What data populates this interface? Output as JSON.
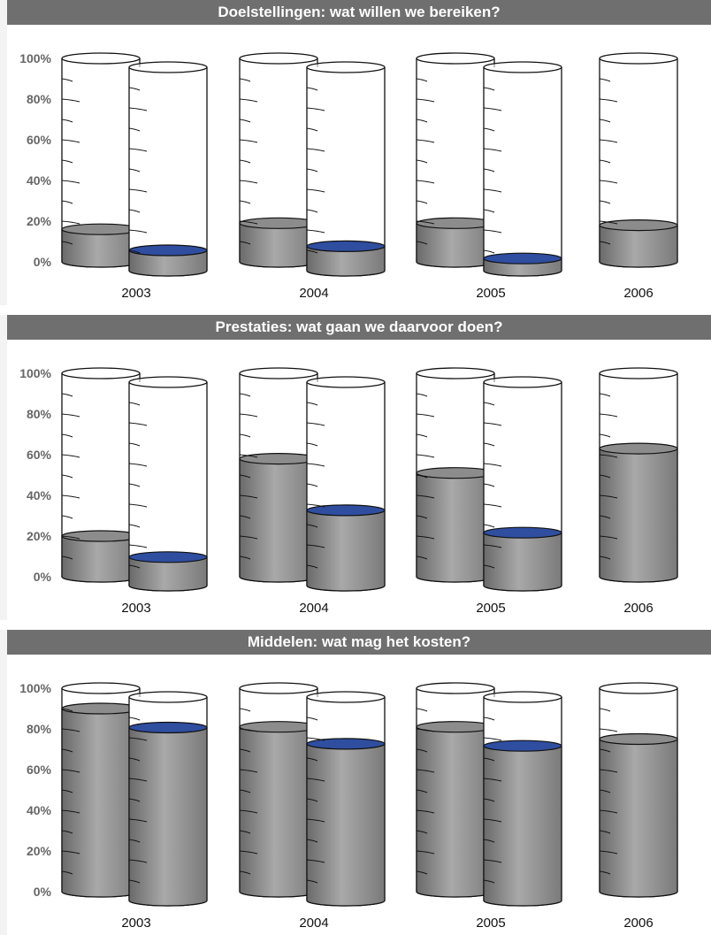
{
  "chart_data": [
    {
      "type": "bar",
      "title": "Doelstellingen: wat willen we bereiken?",
      "categories": [
        "2003",
        "2004",
        "2005",
        "2006"
      ],
      "ylim": [
        0,
        100
      ],
      "y_ticks": [
        "0%",
        "20%",
        "40%",
        "60%",
        "80%",
        "100%"
      ],
      "series": [
        {
          "values": [
            16,
            19,
            19,
            18
          ],
          "color": "#8c8c8c"
        },
        {
          "values": [
            10,
            12,
            6,
            null
          ],
          "color": "#2f4ea0"
        }
      ]
    },
    {
      "type": "bar",
      "title": "Prestaties: wat gaan we daarvoor doen?",
      "categories": [
        "2003",
        "2004",
        "2005",
        "2006"
      ],
      "ylim": [
        0,
        100
      ],
      "y_ticks": [
        "0%",
        "20%",
        "40%",
        "60%",
        "80%",
        "100%"
      ],
      "series": [
        {
          "values": [
            20,
            58,
            51,
            63
          ],
          "color": "#8c8c8c"
        },
        {
          "values": [
            14,
            37,
            26,
            null
          ],
          "color": "#2f4ea0"
        }
      ]
    },
    {
      "type": "bar",
      "title": "Middelen: wat mag het kosten?",
      "categories": [
        "2003",
        "2004",
        "2005",
        "2006"
      ],
      "ylim": [
        0,
        100
      ],
      "y_ticks": [
        "0%",
        "20%",
        "40%",
        "60%",
        "80%",
        "100%"
      ],
      "series": [
        {
          "values": [
            90,
            81,
            81,
            75
          ],
          "color": "#8c8c8c"
        },
        {
          "values": [
            85,
            77,
            76,
            null
          ],
          "color": "#2f4ea0"
        }
      ]
    }
  ]
}
